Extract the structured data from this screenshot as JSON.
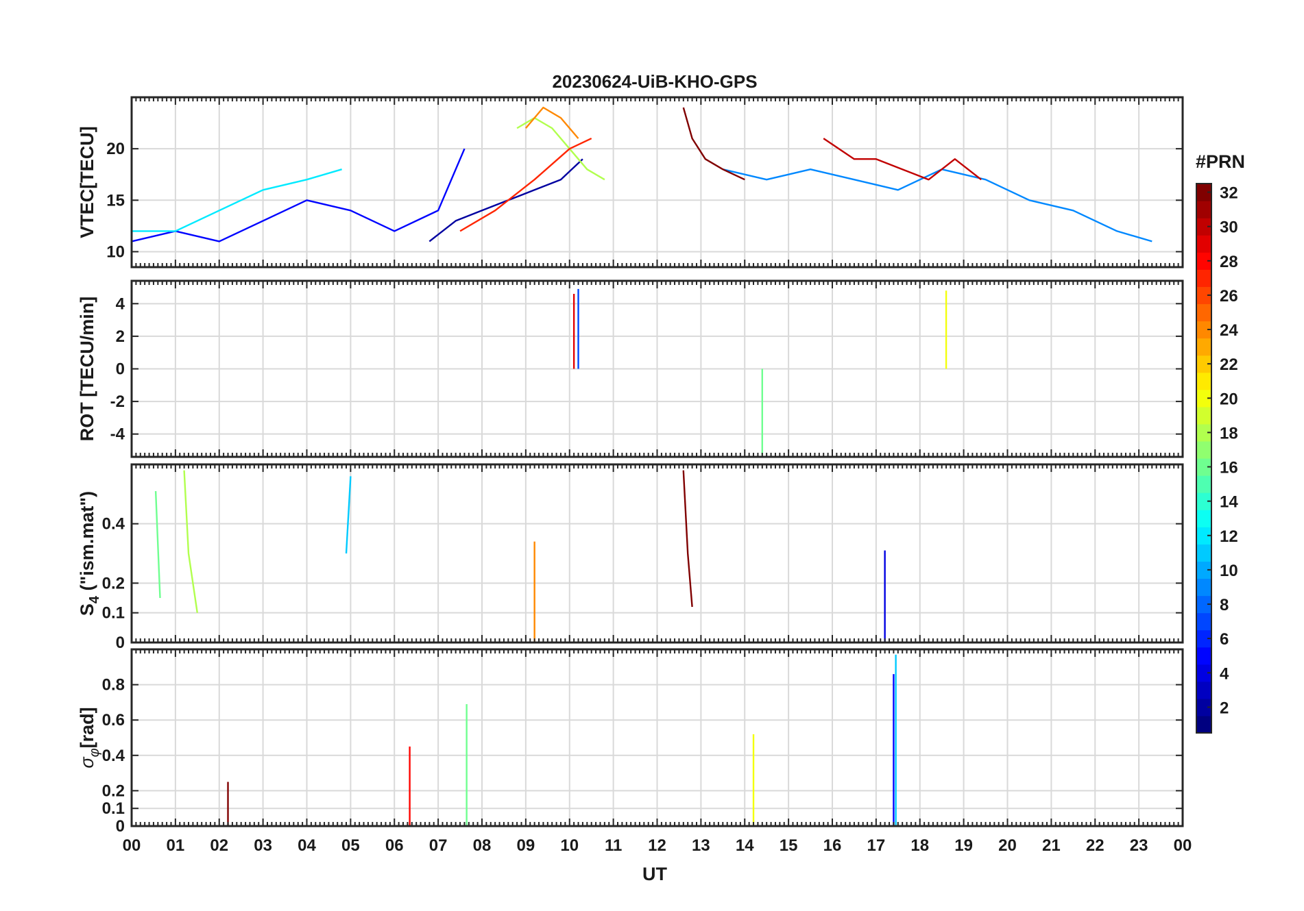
{
  "chart_data": {
    "title": "20230624-UiB-KHO-GPS",
    "type": "line",
    "x_range_hours": [
      0,
      24
    ],
    "grid": true,
    "xlabel": "UT",
    "x_tick_labels": [
      "00",
      "01",
      "02",
      "03",
      "04",
      "05",
      "06",
      "07",
      "08",
      "09",
      "10",
      "11",
      "12",
      "13",
      "14",
      "15",
      "16",
      "17",
      "18",
      "19",
      "20",
      "21",
      "22",
      "23",
      "00"
    ],
    "panels": [
      {
        "ylabel": "VTEC[TECU]",
        "ylim": [
          8.5,
          25
        ],
        "yticks": [
          10,
          15,
          20
        ],
        "ytick_labels": [
          "10",
          "15",
          "20"
        ],
        "series": [
          {
            "prn": 2,
            "x": [
              6.8,
              7.4,
              8.0,
              8.6,
              9.2,
              9.8,
              10.3
            ],
            "y": [
              11,
              13,
              14,
              15,
              16,
              17,
              19
            ]
          },
          {
            "prn": 5,
            "x": [
              0,
              1,
              2,
              3,
              4,
              5,
              6,
              7,
              7.6
            ],
            "y": [
              11,
              12,
              11,
              13,
              15,
              14,
              12,
              14,
              20
            ]
          },
          {
            "prn": 9,
            "x": [
              13.5,
              14.5,
              15.5,
              16.5,
              17.5,
              18.5,
              19.5,
              20.5,
              21.5,
              22.5,
              23.3
            ],
            "y": [
              18,
              17,
              18,
              17,
              16,
              18,
              17,
              15,
              14,
              12,
              11
            ]
          },
          {
            "prn": 12,
            "x": [
              0,
              1,
              2,
              3,
              4,
              4.8
            ],
            "y": [
              12,
              12,
              14,
              16,
              17,
              18
            ]
          },
          {
            "prn": 18,
            "x": [
              8.8,
              9.2,
              9.6,
              10.0,
              10.4,
              10.8
            ],
            "y": [
              22,
              23,
              22,
              20,
              18,
              17
            ]
          },
          {
            "prn": 24,
            "x": [
              9.0,
              9.4,
              9.8,
              10.2
            ],
            "y": [
              22,
              24,
              23,
              21
            ]
          },
          {
            "prn": 27,
            "x": [
              7.5,
              8.3,
              9.2,
              10.0,
              10.5
            ],
            "y": [
              12,
              14,
              17,
              20,
              21
            ]
          },
          {
            "prn": 30,
            "x": [
              15.8,
              16.5,
              17.0,
              17.6,
              18.2,
              18.8,
              19.4
            ],
            "y": [
              21,
              19,
              19,
              18,
              17,
              19,
              17
            ]
          },
          {
            "prn": 32,
            "x": [
              12.6,
              12.8,
              13.1,
              13.5,
              14.0
            ],
            "y": [
              24,
              21,
              19,
              18,
              17
            ]
          }
        ]
      },
      {
        "ylabel": "ROT [TECU/min]",
        "ylim": [
          -5.4,
          5.4
        ],
        "yticks": [
          -4,
          -2,
          0,
          2,
          4
        ],
        "ytick_labels": [
          "-4",
          "-2",
          "0",
          "2",
          "4"
        ],
        "series": [
          {
            "prn": 7,
            "x": [
              10.2
            ],
            "y": [
              4.9
            ]
          },
          {
            "prn": 16,
            "x": [
              14.4
            ],
            "y": [
              -5.3
            ]
          },
          {
            "prn": 20,
            "x": [
              18.6
            ],
            "y": [
              4.8
            ]
          },
          {
            "prn": 29,
            "x": [
              10.1
            ],
            "y": [
              4.6
            ]
          }
        ]
      },
      {
        "ylabel": "S4 (\"ism.mat\")",
        "ylabel_parts": [
          "S",
          "4",
          " (\"ism.mat\")"
        ],
        "ylim": [
          0,
          0.6
        ],
        "yticks": [
          0,
          0.1,
          0.2,
          0.4
        ],
        "ytick_labels": [
          "0",
          "0.1",
          "0.2",
          "0.4"
        ],
        "series": [
          {
            "prn": 18,
            "x": [
              1.2,
              1.3,
              1.5
            ],
            "y": [
              0.58,
              0.3,
              0.1
            ]
          },
          {
            "prn": 16,
            "x": [
              0.55,
              0.65
            ],
            "y": [
              0.51,
              0.15
            ]
          },
          {
            "prn": 11,
            "x": [
              4.9,
              5.0
            ],
            "y": [
              0.3,
              0.56
            ]
          },
          {
            "prn": 32,
            "x": [
              12.6,
              12.7,
              12.8
            ],
            "y": [
              0.58,
              0.3,
              0.12
            ]
          },
          {
            "prn": 4,
            "x": [
              17.2
            ],
            "y": [
              0.31
            ]
          },
          {
            "prn": 24,
            "x": [
              9.2
            ],
            "y": [
              0.34
            ]
          }
        ]
      },
      {
        "ylabel": "σφ[rad]",
        "ylabel_parts": [
          "σ",
          "φ",
          "[rad]"
        ],
        "ylim": [
          0,
          1.0
        ],
        "yticks": [
          0,
          0.1,
          0.2,
          0.4,
          0.6,
          0.8
        ],
        "ytick_labels": [
          "0",
          "0.1",
          "0.2",
          "0.4",
          "0.6",
          "0.8"
        ],
        "series": [
          {
            "prn": 11,
            "x": [
              17.45
            ],
            "y": [
              0.97
            ]
          },
          {
            "prn": 5,
            "x": [
              17.4
            ],
            "y": [
              0.86
            ]
          },
          {
            "prn": 16,
            "x": [
              7.65
            ],
            "y": [
              0.69
            ]
          },
          {
            "prn": 20,
            "x": [
              14.2
            ],
            "y": [
              0.52
            ]
          },
          {
            "prn": 28,
            "x": [
              6.35
            ],
            "y": [
              0.45
            ]
          },
          {
            "prn": 32,
            "x": [
              2.2
            ],
            "y": [
              0.25
            ]
          }
        ]
      }
    ],
    "colorbar": {
      "title": "#PRN",
      "range": [
        1,
        32
      ],
      "colormap": "jet",
      "tick_values": [
        2,
        4,
        6,
        8,
        10,
        12,
        14,
        16,
        18,
        20,
        22,
        24,
        26,
        28,
        30,
        32
      ],
      "tick_labels": [
        "2",
        "4",
        "6",
        "8",
        "10",
        "12",
        "14",
        "16",
        "18",
        "20",
        "22",
        "24",
        "26",
        "28",
        "30",
        "32"
      ]
    }
  }
}
